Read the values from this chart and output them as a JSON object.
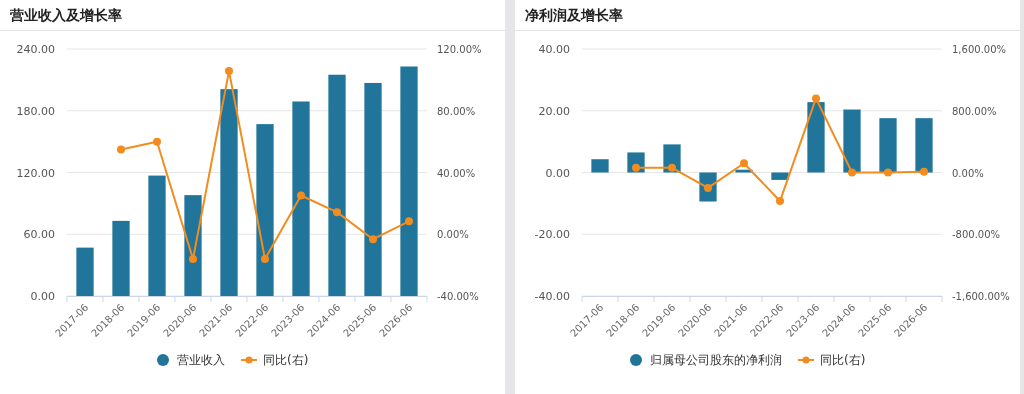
{
  "chart_data": [
    {
      "type": "bar",
      "title": "营业收入及增长率",
      "categories": [
        "2017-06",
        "2018-06",
        "2019-06",
        "2020-06",
        "2021-06",
        "2022-06",
        "2023-06",
        "2024-06",
        "2025-06",
        "2026-06"
      ],
      "series": [
        {
          "name": "营业收入",
          "color": "#21759b",
          "values": [
            47,
            73,
            117,
            98,
            201,
            167,
            189,
            215,
            207,
            223
          ]
        },
        {
          "name": "同比(右)",
          "type": "line",
          "axis": "y2",
          "color": "#f28c1e",
          "values": [
            null,
            54.9,
            59.9,
            -16,
            105.7,
            -16,
            25.1,
            14.3,
            -3.2,
            8.4
          ]
        }
      ],
      "ylim": [
        0,
        240
      ],
      "yticks": [
        {
          "value": 0,
          "label": "0.00"
        },
        {
          "value": 60,
          "label": "60.00"
        },
        {
          "value": 120,
          "label": "120.00"
        },
        {
          "value": 180,
          "label": "180.00"
        },
        {
          "value": 240,
          "label": "240.00"
        }
      ],
      "y2lim": [
        -40,
        120
      ],
      "y2ticks": [
        {
          "value": -40,
          "label": "-40.00%"
        },
        {
          "value": 0,
          "label": "0.00%"
        },
        {
          "value": 40,
          "label": "40.00%"
        },
        {
          "value": 80,
          "label": "80.00%"
        },
        {
          "value": 120,
          "label": "120.00%"
        }
      ],
      "grid": "y",
      "legend": "bottom",
      "marker": "circle",
      "line_style": "solid"
    },
    {
      "type": "bar",
      "title": "净利润及增长率",
      "categories": [
        "2017-06",
        "2018-06",
        "2019-06",
        "2020-06",
        "2021-06",
        "2022-06",
        "2023-06",
        "2024-06",
        "2025-06",
        "2026-06"
      ],
      "series": [
        {
          "name": "归属母公司股东的净利润",
          "color": "#21759b",
          "values": [
            4.3,
            6.5,
            9.1,
            -9.4,
            0.9,
            -2.4,
            22.8,
            20.4,
            17.6,
            17.6
          ]
        },
        {
          "name": "同比(右)",
          "type": "line",
          "axis": "y2",
          "color": "#f28c1e",
          "values": [
            null,
            60,
            60,
            -200,
            120,
            -370,
            960,
            0,
            0,
            10
          ]
        }
      ],
      "ylim": [
        -40,
        40
      ],
      "yticks": [
        {
          "value": -40,
          "label": "-40.00"
        },
        {
          "value": -20,
          "label": "-20.00"
        },
        {
          "value": 0,
          "label": "0.00"
        },
        {
          "value": 20,
          "label": "20.00"
        },
        {
          "value": 40,
          "label": "40.00"
        }
      ],
      "y2lim": [
        -1600,
        1600
      ],
      "y2ticks": [
        {
          "value": -1600,
          "label": "-1,600.00%"
        },
        {
          "value": -800,
          "label": "-800.00%"
        },
        {
          "value": 0,
          "label": "0.00%"
        },
        {
          "value": 800,
          "label": "800.00%"
        },
        {
          "value": 1600,
          "label": "1,600.00%"
        }
      ],
      "grid": "y",
      "legend": "bottom",
      "marker": "circle",
      "line_style": "solid"
    }
  ]
}
